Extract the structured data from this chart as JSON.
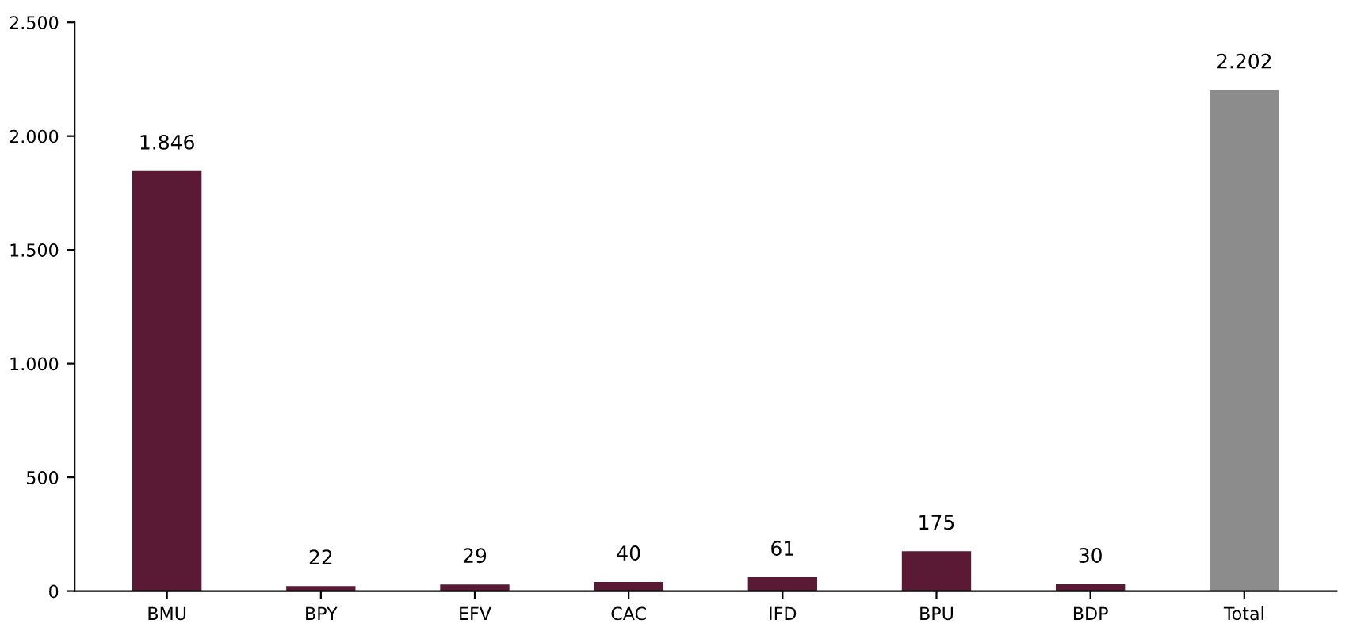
{
  "chart_data": {
    "type": "bar",
    "categories": [
      "BMU",
      "BPY",
      "EFV",
      "CAC",
      "IFD",
      "BPU",
      "BDP",
      "Total"
    ],
    "values": [
      1846,
      22,
      29,
      40,
      61,
      175,
      30,
      2202
    ],
    "colors": [
      "#5a1a35",
      "#5a1a35",
      "#5a1a35",
      "#5a1a35",
      "#5a1a35",
      "#5a1a35",
      "#5a1a35",
      "#8c8c8c"
    ],
    "value_labels": [
      "1.846",
      "22",
      "29",
      "40",
      "61",
      "175",
      "30",
      "2.202"
    ],
    "ylim": [
      0,
      2500
    ],
    "yticks": [
      0,
      {
        "value": 500,
        "label": "500"
      },
      {
        "value": 1000,
        "label": "1.000"
      },
      {
        "value": 1500,
        "label": "1.500"
      },
      {
        "value": 2000,
        "label": "2.000"
      },
      {
        "value": 2500,
        "label": "2.500"
      }
    ],
    "grid": false,
    "legend": false
  }
}
